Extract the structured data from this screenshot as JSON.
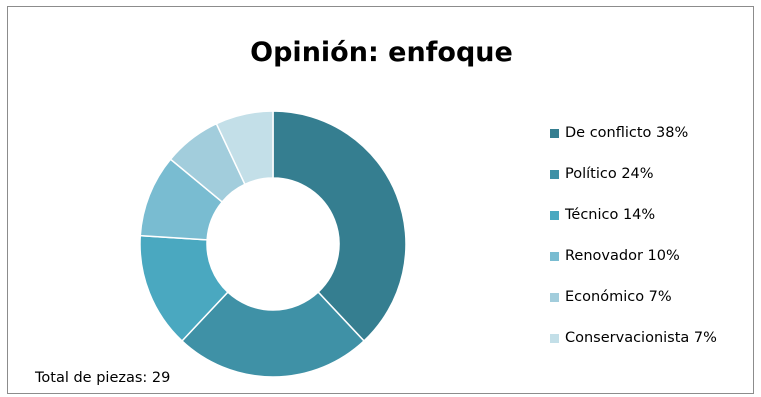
{
  "chart_data": {
    "type": "pie",
    "title": "Opinión: enfoque",
    "donut": true,
    "categories": [
      "De conflicto",
      "Político",
      "Técnico",
      "Renovador",
      "Económico",
      "Conservacionista"
    ],
    "values": [
      38,
      24,
      14,
      10,
      7,
      7
    ],
    "legend_labels": [
      "De conflicto 38%",
      "Político 24%",
      "Técnico 14%",
      "Renovador 10%",
      "Económico 7%",
      "Conservacionista 7%"
    ],
    "colors": [
      "#357e90",
      "#3f91a6",
      "#4aa8c0",
      "#79bcd1",
      "#a2cddc",
      "#c3dfe8"
    ],
    "legend_position": "right",
    "annotation": "Total de piezas: 29"
  }
}
